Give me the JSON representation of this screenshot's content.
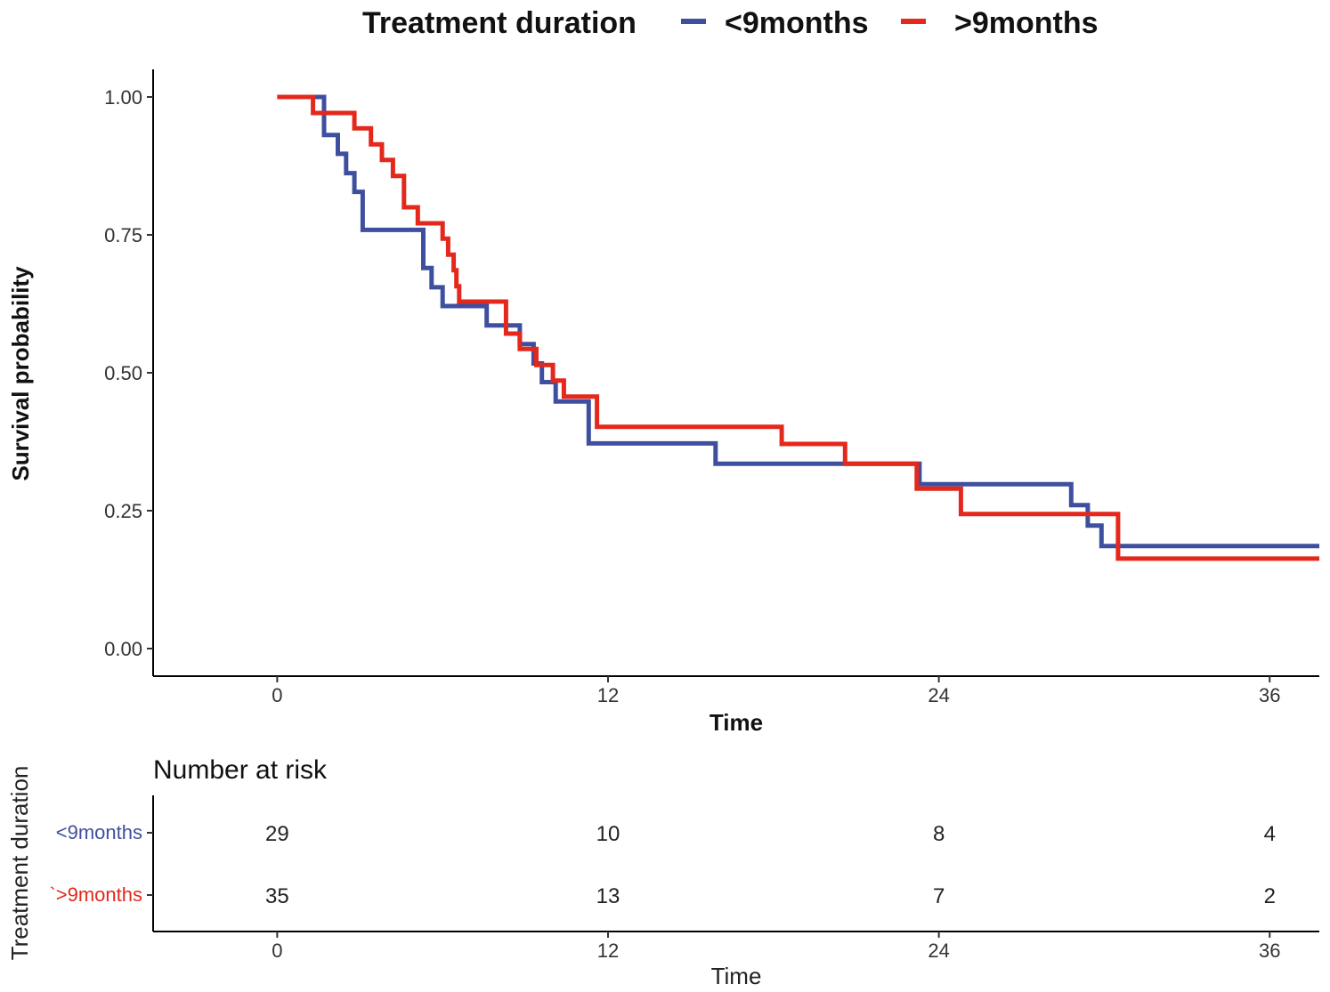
{
  "chart_data": {
    "type": "line",
    "subtype": "kaplan-meier step",
    "xlabel": "Time",
    "ylabel": "Survival probability",
    "xlim": [
      -4.5,
      37.8
    ],
    "ylim": [
      -0.05,
      1.05
    ],
    "x_ticks": [
      0,
      12,
      24,
      36
    ],
    "x_tick_labels": [
      "0",
      "12",
      "24",
      "36"
    ],
    "y_ticks": [
      0,
      0.25,
      0.5,
      0.75,
      1.0
    ],
    "y_tick_labels": [
      "0.00",
      "0.25",
      "0.50",
      "0.75",
      "1.00"
    ],
    "grid": false,
    "legend": {
      "title": "Treatment duration",
      "placement": "top"
    },
    "series": [
      {
        "name": "<9months",
        "color": "#3F4FA0",
        "x": [
          0,
          1.7,
          1.7,
          2.2,
          2.2,
          2.5,
          2.5,
          2.8,
          2.8,
          3.1,
          3.1,
          5.3,
          5.3,
          5.6,
          5.6,
          6.0,
          6.0,
          7.6,
          7.6,
          8.8,
          8.8,
          8.9,
          8.9,
          9.3,
          9.3,
          9.6,
          9.6,
          10.1,
          10.1,
          10.9,
          10.9,
          11.3,
          11.3,
          15.9,
          15.9,
          23.1,
          23.1,
          23.3,
          23.3,
          28.8,
          28.8,
          29.4,
          29.4,
          29.9,
          29.9,
          37.8
        ],
        "y": [
          1.0,
          1.0,
          0.931,
          0.931,
          0.897,
          0.897,
          0.862,
          0.862,
          0.828,
          0.828,
          0.759,
          0.759,
          0.69,
          0.69,
          0.655,
          0.655,
          0.621,
          0.621,
          0.586,
          0.586,
          0.552,
          0.552,
          0.552,
          0.552,
          0.517,
          0.517,
          0.483,
          0.483,
          0.448,
          0.448,
          0.448,
          0.448,
          0.372,
          0.372,
          0.335,
          0.335,
          0.335,
          0.335,
          0.298,
          0.298,
          0.26,
          0.26,
          0.223,
          0.223,
          0.186,
          0.186
        ]
      },
      {
        "name": ">9months",
        "color": "#E4281B",
        "x": [
          0,
          1.3,
          1.3,
          2.8,
          2.8,
          3.4,
          3.4,
          3.8,
          3.8,
          4.2,
          4.2,
          4.6,
          4.6,
          5.1,
          5.1,
          6.0,
          6.0,
          6.2,
          6.2,
          6.4,
          6.4,
          6.5,
          6.5,
          6.6,
          6.6,
          8.3,
          8.3,
          8.8,
          8.8,
          9.4,
          9.4,
          10.0,
          10.0,
          10.4,
          10.4,
          11.6,
          11.6,
          18.3,
          18.3,
          20.6,
          20.6,
          23.2,
          23.2,
          24.8,
          24.8,
          30.5,
          30.5,
          37.8
        ],
        "y": [
          1.0,
          1.0,
          0.971,
          0.971,
          0.943,
          0.943,
          0.914,
          0.914,
          0.886,
          0.886,
          0.857,
          0.857,
          0.8,
          0.8,
          0.771,
          0.771,
          0.743,
          0.743,
          0.714,
          0.714,
          0.686,
          0.686,
          0.657,
          0.657,
          0.629,
          0.629,
          0.571,
          0.571,
          0.543,
          0.543,
          0.514,
          0.514,
          0.486,
          0.486,
          0.457,
          0.457,
          0.402,
          0.402,
          0.371,
          0.371,
          0.335,
          0.335,
          0.29,
          0.29,
          0.244,
          0.244,
          0.163,
          0.163
        ]
      }
    ],
    "risk_table": {
      "title": "Number at risk",
      "xlabel": "Time",
      "ylabel": "Treatment duration",
      "times": [
        0,
        12,
        24,
        36
      ],
      "rows": [
        {
          "label": "<9months",
          "color": "#3F4FA0",
          "values": [
            29,
            10,
            8,
            4
          ]
        },
        {
          "label": "`>9months",
          "color": "#E4281B",
          "values": [
            35,
            13,
            7,
            2
          ]
        }
      ]
    }
  }
}
